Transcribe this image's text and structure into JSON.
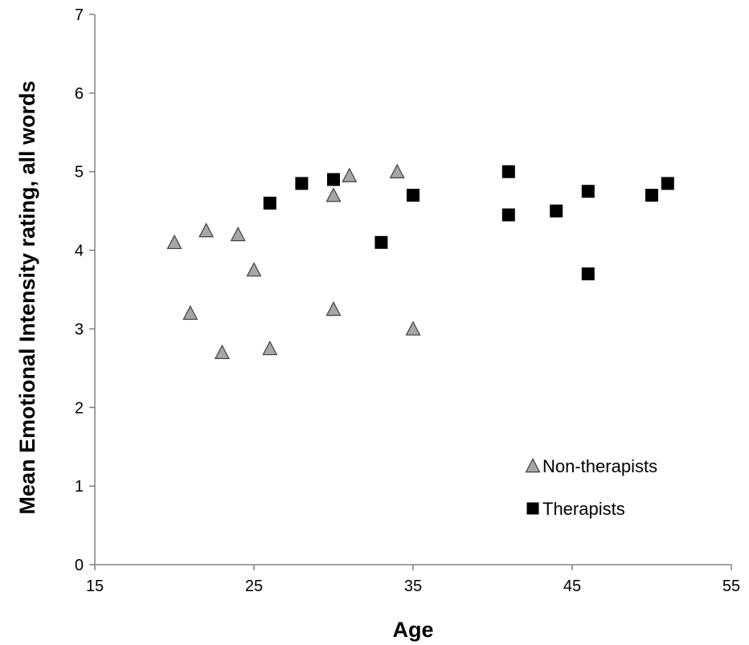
{
  "chart_data": {
    "type": "scatter",
    "title": "",
    "xlabel": "Age",
    "ylabel": "Mean Emotional Intensity rating, all words",
    "xlim": [
      15,
      55
    ],
    "ylim": [
      0,
      7
    ],
    "xticks": [
      "15",
      "25",
      "35",
      "45",
      "55"
    ],
    "yticks": [
      "0",
      "1",
      "2",
      "3",
      "4",
      "5",
      "6",
      "7"
    ],
    "grid": false,
    "legend_position": "bottom-right",
    "series": [
      {
        "name": "Non-therapists",
        "marker": "triangle",
        "color": "#a6a6a6",
        "points": [
          {
            "x": 20,
            "y": 4.1
          },
          {
            "x": 21,
            "y": 3.2
          },
          {
            "x": 22,
            "y": 4.25
          },
          {
            "x": 23,
            "y": 2.7
          },
          {
            "x": 24,
            "y": 4.2
          },
          {
            "x": 25,
            "y": 3.75
          },
          {
            "x": 26,
            "y": 2.75
          },
          {
            "x": 30,
            "y": 4.7
          },
          {
            "x": 30,
            "y": 3.25
          },
          {
            "x": 31,
            "y": 4.95
          },
          {
            "x": 34,
            "y": 5.0
          },
          {
            "x": 35,
            "y": 3.0
          }
        ]
      },
      {
        "name": "Therapists",
        "marker": "square",
        "color": "#000000",
        "points": [
          {
            "x": 26,
            "y": 4.6
          },
          {
            "x": 28,
            "y": 4.85
          },
          {
            "x": 30,
            "y": 4.9
          },
          {
            "x": 33,
            "y": 4.1
          },
          {
            "x": 35,
            "y": 4.7
          },
          {
            "x": 41,
            "y": 5.0
          },
          {
            "x": 41,
            "y": 4.45
          },
          {
            "x": 44,
            "y": 4.5
          },
          {
            "x": 46,
            "y": 4.75
          },
          {
            "x": 46,
            "y": 3.7
          },
          {
            "x": 50,
            "y": 4.7
          },
          {
            "x": 51,
            "y": 4.85
          }
        ]
      }
    ]
  }
}
